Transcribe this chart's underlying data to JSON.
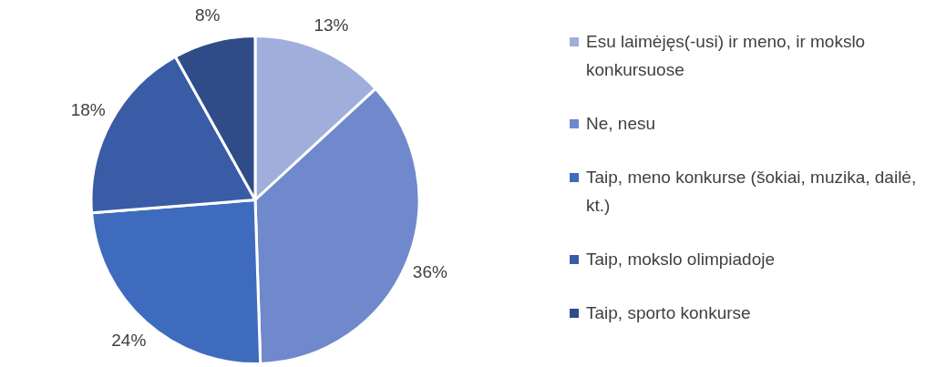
{
  "chart_data": {
    "type": "pie",
    "categories": [
      "Esu laimėjęs(-usi) ir meno, ir mokslo konkursuose",
      "Ne, nesu",
      "Taip, meno konkurse (šokiai, muzika, dailė, kt.)",
      "Taip, mokslo olimpiadoje",
      "Taip, sporto konkurse"
    ],
    "values": [
      13,
      36,
      24,
      18,
      8
    ],
    "value_labels": [
      "13%",
      "36%",
      "24%",
      "18%",
      "8%"
    ],
    "colors": [
      "#a0aedb",
      "#6f89cc",
      "#3f6bbf",
      "#3a5ca6",
      "#2f4b88"
    ],
    "legend": "right"
  }
}
